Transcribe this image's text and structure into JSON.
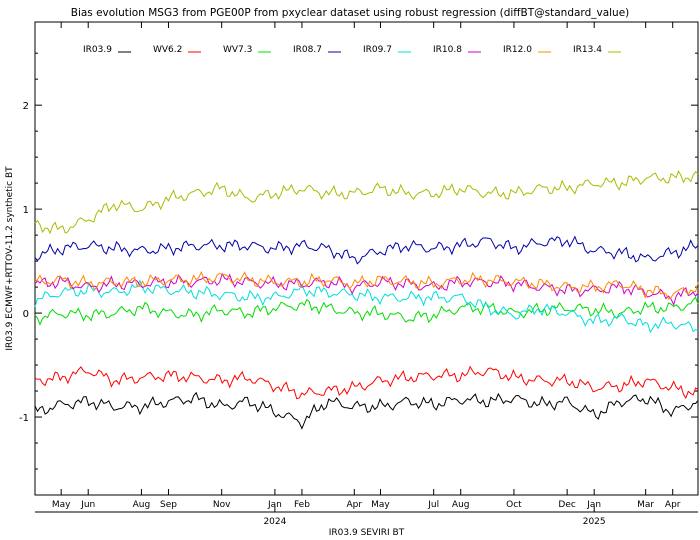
{
  "chart_data": {
    "type": "line",
    "title": "Bias evolution MSG3 from PGE00P from pxyclear dataset using robust regression (diffBT@standard_value)",
    "xlabel": "IR03.9 SEVIRI BT",
    "ylabel": "IR03.9 ECMWF+RTTOV-11.2 synthetic BT",
    "x_range": [
      "2023-04-01",
      "2025-04-30"
    ],
    "ylim": [
      -1.75,
      2.8
    ],
    "y_ticks": [
      -1,
      0,
      1,
      2
    ],
    "month_ticks": [
      {
        "label": "May",
        "date": "2023-05-01"
      },
      {
        "label": "Jun",
        "date": "2023-06-01"
      },
      {
        "label": "Aug",
        "date": "2023-08-01"
      },
      {
        "label": "Sep",
        "date": "2023-09-01"
      },
      {
        "label": "Nov",
        "date": "2023-11-01"
      },
      {
        "label": "Jan",
        "date": "2024-01-01"
      },
      {
        "label": "Feb",
        "date": "2024-02-01"
      },
      {
        "label": "Apr",
        "date": "2024-04-01"
      },
      {
        "label": "May",
        "date": "2024-05-01"
      },
      {
        "label": "Jul",
        "date": "2024-07-01"
      },
      {
        "label": "Aug",
        "date": "2024-08-01"
      },
      {
        "label": "Oct",
        "date": "2024-10-01"
      },
      {
        "label": "Dec",
        "date": "2024-12-01"
      },
      {
        "label": "Jan",
        "date": "2025-01-01"
      },
      {
        "label": "Mar",
        "date": "2025-03-01"
      },
      {
        "label": "Apr",
        "date": "2025-04-01"
      }
    ],
    "year_ticks": [
      {
        "label": "2024",
        "date": "2024-01-01"
      },
      {
        "label": "2025",
        "date": "2025-01-01"
      }
    ],
    "legend_position": "top",
    "x": [
      "2023-04-01",
      "2023-05-01",
      "2023-06-01",
      "2023-07-01",
      "2023-08-01",
      "2023-09-01",
      "2023-10-01",
      "2023-11-01",
      "2023-12-01",
      "2024-01-01",
      "2024-02-01",
      "2024-03-01",
      "2024-04-01",
      "2024-05-01",
      "2024-06-01",
      "2024-07-01",
      "2024-08-01",
      "2024-09-01",
      "2024-10-01",
      "2024-11-01",
      "2024-12-01",
      "2025-01-01",
      "2025-02-01",
      "2025-03-01",
      "2025-04-01",
      "2025-04-30"
    ],
    "series": [
      {
        "name": "IR03.9",
        "color": "#000000",
        "values": [
          -0.95,
          -0.88,
          -0.85,
          -0.9,
          -0.9,
          -0.85,
          -0.82,
          -0.9,
          -0.85,
          -0.95,
          -1.05,
          -0.85,
          -0.9,
          -0.9,
          -0.85,
          -0.88,
          -0.83,
          -0.85,
          -0.82,
          -0.88,
          -0.85,
          -0.98,
          -0.85,
          -0.82,
          -0.95,
          -0.85
        ]
      },
      {
        "name": "WV6.2",
        "color": "#ff0000",
        "values": [
          -0.65,
          -0.62,
          -0.55,
          -0.65,
          -0.62,
          -0.6,
          -0.62,
          -0.65,
          -0.62,
          -0.7,
          -0.78,
          -0.75,
          -0.72,
          -0.65,
          -0.62,
          -0.6,
          -0.6,
          -0.55,
          -0.62,
          -0.65,
          -0.65,
          -0.72,
          -0.7,
          -0.65,
          -0.72,
          -0.78
        ]
      },
      {
        "name": "WV7.3",
        "color": "#00dd00",
        "values": [
          -0.05,
          0.0,
          -0.02,
          0.0,
          0.05,
          0.0,
          -0.02,
          0.03,
          0.0,
          0.05,
          0.08,
          0.05,
          0.0,
          0.0,
          -0.05,
          -0.02,
          0.05,
          0.05,
          0.0,
          0.03,
          0.05,
          0.03,
          0.0,
          0.05,
          0.05,
          0.1
        ]
      },
      {
        "name": "IR08.7",
        "color": "#0000aa",
        "values": [
          0.55,
          0.62,
          0.65,
          0.62,
          0.6,
          0.62,
          0.65,
          0.65,
          0.65,
          0.62,
          0.65,
          0.62,
          0.52,
          0.6,
          0.65,
          0.62,
          0.65,
          0.7,
          0.62,
          0.68,
          0.7,
          0.6,
          0.58,
          0.52,
          0.58,
          0.65
        ]
      },
      {
        "name": "IR09.7",
        "color": "#00dddd",
        "values": [
          0.12,
          0.2,
          0.22,
          0.2,
          0.25,
          0.22,
          0.2,
          0.18,
          0.15,
          0.15,
          0.22,
          0.2,
          0.18,
          0.15,
          0.15,
          0.15,
          0.15,
          0.05,
          -0.02,
          0.05,
          0.0,
          -0.08,
          -0.05,
          -0.12,
          -0.1,
          -0.15
        ]
      },
      {
        "name": "IR10.8",
        "color": "#cc00cc",
        "values": [
          0.28,
          0.3,
          0.25,
          0.28,
          0.28,
          0.3,
          0.3,
          0.32,
          0.3,
          0.28,
          0.28,
          0.3,
          0.25,
          0.3,
          0.28,
          0.25,
          0.3,
          0.3,
          0.28,
          0.25,
          0.22,
          0.22,
          0.25,
          0.2,
          0.15,
          0.22
        ]
      },
      {
        "name": "IR12.0",
        "color": "#ff8800",
        "values": [
          0.3,
          0.32,
          0.28,
          0.3,
          0.3,
          0.32,
          0.32,
          0.35,
          0.32,
          0.3,
          0.3,
          0.32,
          0.28,
          0.32,
          0.3,
          0.28,
          0.32,
          0.32,
          0.3,
          0.28,
          0.25,
          0.25,
          0.28,
          0.22,
          0.18,
          0.25
        ]
      },
      {
        "name": "IR13.4",
        "color": "#aabb00",
        "values": [
          0.85,
          0.8,
          0.9,
          1.05,
          1.0,
          1.1,
          1.15,
          1.2,
          1.1,
          1.15,
          1.2,
          1.15,
          1.15,
          1.2,
          1.15,
          1.15,
          1.2,
          1.15,
          1.15,
          1.2,
          1.2,
          1.25,
          1.25,
          1.3,
          1.3,
          1.32
        ]
      }
    ]
  }
}
